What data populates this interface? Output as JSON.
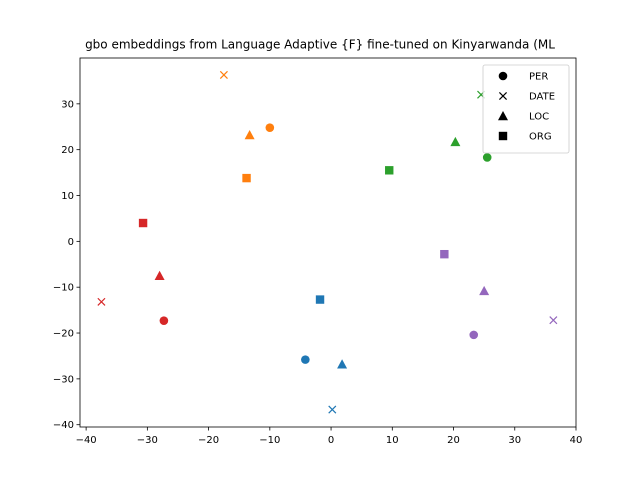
{
  "chart_data": {
    "type": "scatter",
    "title": "gbo embeddings from Language Adaptive {F} fine-tuned on Kinyarwanda (ML",
    "xlabel": "",
    "ylabel": "",
    "xlim": [
      -41,
      40
    ],
    "ylim": [
      -40.5,
      40
    ],
    "xticks": [
      -40,
      -30,
      -20,
      -10,
      0,
      10,
      20,
      30,
      40
    ],
    "yticks": [
      -40,
      -30,
      -20,
      -10,
      0,
      10,
      20,
      30
    ],
    "grid": false,
    "legend_position": "top-right",
    "legend": [
      {
        "label": "PER",
        "marker": "circle"
      },
      {
        "label": "DATE",
        "marker": "x"
      },
      {
        "label": "LOC",
        "marker": "triangle"
      },
      {
        "label": "ORG",
        "marker": "square"
      }
    ],
    "colors": {
      "blue": "#1f77b4",
      "orange": "#ff7f0e",
      "green": "#2ca02c",
      "red": "#d62728",
      "purple": "#9467bd"
    },
    "points": [
      {
        "x": -10,
        "y": 24.8,
        "marker": "circle",
        "color": "orange"
      },
      {
        "x": -17.5,
        "y": 36.3,
        "marker": "x",
        "color": "orange"
      },
      {
        "x": -13.3,
        "y": 23.2,
        "marker": "triangle",
        "color": "orange"
      },
      {
        "x": -13.8,
        "y": 13.8,
        "marker": "square",
        "color": "orange"
      },
      {
        "x": 25.5,
        "y": 18.3,
        "marker": "circle",
        "color": "green"
      },
      {
        "x": 24.5,
        "y": 32,
        "marker": "x",
        "color": "green"
      },
      {
        "x": 20.3,
        "y": 21.7,
        "marker": "triangle",
        "color": "green"
      },
      {
        "x": 9.5,
        "y": 15.5,
        "marker": "square",
        "color": "green"
      },
      {
        "x": -27.3,
        "y": -17.3,
        "marker": "circle",
        "color": "red"
      },
      {
        "x": -37.5,
        "y": -13.2,
        "marker": "x",
        "color": "red"
      },
      {
        "x": -28,
        "y": -7.5,
        "marker": "triangle",
        "color": "red"
      },
      {
        "x": -30.7,
        "y": 4,
        "marker": "square",
        "color": "red"
      },
      {
        "x": 23.3,
        "y": -20.4,
        "marker": "circle",
        "color": "purple"
      },
      {
        "x": 36.3,
        "y": -17.2,
        "marker": "x",
        "color": "purple"
      },
      {
        "x": 25,
        "y": -10.8,
        "marker": "triangle",
        "color": "purple"
      },
      {
        "x": 18.5,
        "y": -2.8,
        "marker": "square",
        "color": "purple"
      },
      {
        "x": -4.2,
        "y": -25.8,
        "marker": "circle",
        "color": "blue"
      },
      {
        "x": 0.2,
        "y": -36.7,
        "marker": "x",
        "color": "blue"
      },
      {
        "x": 1.8,
        "y": -26.8,
        "marker": "triangle",
        "color": "blue"
      },
      {
        "x": -1.8,
        "y": -12.7,
        "marker": "square",
        "color": "blue"
      }
    ]
  }
}
